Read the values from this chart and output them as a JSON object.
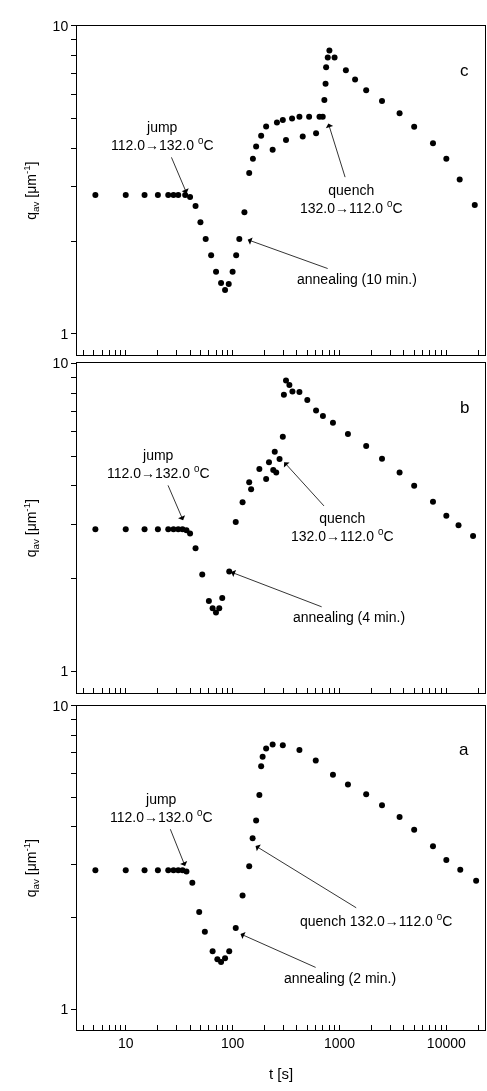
{
  "chart_data": [
    {
      "type": "scatter",
      "title": "c",
      "ylabel": "q$_{av}$ [μm$^{-1}$]",
      "log": "xy",
      "marker": "circle",
      "tick_labels": "y",
      "color": "#000000",
      "x": [
        5.2,
        10,
        15,
        20,
        25,
        28,
        31,
        36,
        40,
        45,
        50,
        56,
        63,
        70,
        78,
        85,
        92,
        100,
        108,
        115.5,
        129,
        143,
        155,
        166,
        185,
        206,
        237,
        260,
        295,
        316,
        360,
        422,
        453,
        520,
        604,
        650,
        697,
        722,
        741,
        750,
        777,
        805,
        900,
        1148,
        1400,
        1778,
        2500,
        3652,
        5000,
        7499,
        10000,
        13335,
        18450
      ],
      "values": [
        2.82,
        2.82,
        2.82,
        2.82,
        2.82,
        2.82,
        2.82,
        2.82,
        2.78,
        2.6,
        2.3,
        2.03,
        1.8,
        1.59,
        1.46,
        1.386,
        1.45,
        1.59,
        1.8,
        2.03,
        2.48,
        3.33,
        3.7,
        4.06,
        4.4,
        4.71,
        3.96,
        4.85,
        4.95,
        4.26,
        5.0,
        5.07,
        4.37,
        5.07,
        4.48,
        5.07,
        5.07,
        5.74,
        6.49,
        7.34,
        7.9,
        8.31,
        7.9,
        7.17,
        6.7,
        6.18,
        5.7,
        5.2,
        4.7,
        4.16,
        3.7,
        3.17,
        2.62
      ],
      "xlim": [
        3.5,
        23000
      ],
      "xticks": [
        {
          "value": 4,
          "label": null
        },
        {
          "value": 5,
          "label": null
        },
        {
          "value": 6,
          "label": null
        },
        {
          "value": 7,
          "label": null
        },
        {
          "value": 8,
          "label": null
        },
        {
          "value": 9,
          "label": null
        },
        10,
        {
          "value": 20,
          "label": null
        },
        {
          "value": 30,
          "label": null
        },
        {
          "value": 40,
          "label": null
        },
        {
          "value": 50,
          "label": null
        },
        {
          "value": 60,
          "label": null
        },
        {
          "value": 70,
          "label": null
        },
        {
          "value": 80,
          "label": null
        },
        {
          "value": 90,
          "label": null
        },
        100,
        {
          "value": 200,
          "label": null
        },
        {
          "value": 300,
          "label": null
        },
        {
          "value": 400,
          "label": null
        },
        {
          "value": 500,
          "label": null
        },
        {
          "value": 600,
          "label": null
        },
        {
          "value": 700,
          "label": null
        },
        {
          "value": 800,
          "label": null
        },
        {
          "value": 900,
          "label": null
        },
        1000,
        {
          "value": 2000,
          "label": null
        },
        {
          "value": 3000,
          "label": null
        },
        {
          "value": 4000,
          "label": null
        },
        {
          "value": 5000,
          "label": null
        },
        {
          "value": 6000,
          "label": null
        },
        {
          "value": 7000,
          "label": null
        },
        {
          "value": 8000,
          "label": null
        },
        {
          "value": 9000,
          "label": null
        },
        10000,
        {
          "value": 20000,
          "label": null
        }
      ],
      "ylim": [
        0.85,
        10
      ],
      "yticks": [
        1,
        {
          "value": 2,
          "label": null
        },
        {
          "value": 3,
          "label": null
        },
        {
          "value": 4,
          "label": null
        },
        {
          "value": 5,
          "label": null
        },
        {
          "value": 6,
          "label": null
        },
        {
          "value": 7,
          "label": null
        },
        {
          "value": 8,
          "label": null
        },
        {
          "value": 9,
          "label": null
        },
        10
      ],
      "annotations": [
        {
          "text": "jump\n112.0→132.0 $^{0}$C",
          "x": 37.8,
          "y": 2.82
        },
        {
          "text": "annealing (10 min.)",
          "x": 133,
          "y": 2.03
        },
        {
          "text": "quench\n132.0→112.0 $^{0}$C",
          "x": 777,
          "y": 4.89
        }
      ]
    },
    {
      "type": "scatter",
      "title": "b",
      "ylabel": "q$_{av}$ [μm$^{-1}$]",
      "log": "xy",
      "marker": "circle",
      "tick_labels": "y",
      "color": "#000000",
      "x": [
        5.2,
        10,
        15,
        20,
        25,
        28,
        31,
        34,
        37,
        40,
        45,
        52,
        60,
        65,
        69.9,
        75,
        80,
        93,
        107,
        124,
        143,
        149,
        178,
        206,
        219,
        240,
        248,
        256,
        275,
        295,
        302,
        316,
        340,
        363,
        422,
        500,
        604,
        700,
        869,
        1200,
        1778,
        2500,
        3652,
        5000,
        7499,
        10000,
        13000,
        17783
      ],
      "values": [
        2.89,
        2.89,
        2.89,
        2.89,
        2.89,
        2.89,
        2.89,
        2.89,
        2.87,
        2.8,
        2.51,
        2.06,
        1.69,
        1.6,
        1.55,
        1.6,
        1.73,
        2.11,
        3.05,
        3.54,
        4.11,
        3.9,
        4.54,
        4.21,
        4.77,
        4.5,
        5.16,
        4.42,
        4.89,
        5.78,
        7.91,
        8.8,
        8.5,
        8.1,
        8.07,
        7.6,
        7.03,
        6.75,
        6.41,
        5.9,
        5.39,
        4.9,
        4.42,
        4.0,
        3.55,
        3.2,
        2.98,
        2.75
      ],
      "xlim": [
        3.5,
        23000
      ],
      "xticks": [
        {
          "value": 4,
          "label": null
        },
        {
          "value": 5,
          "label": null
        },
        {
          "value": 6,
          "label": null
        },
        {
          "value": 7,
          "label": null
        },
        {
          "value": 8,
          "label": null
        },
        {
          "value": 9,
          "label": null
        },
        10,
        {
          "value": 20,
          "label": null
        },
        {
          "value": 30,
          "label": null
        },
        {
          "value": 40,
          "label": null
        },
        {
          "value": 50,
          "label": null
        },
        {
          "value": 60,
          "label": null
        },
        {
          "value": 70,
          "label": null
        },
        {
          "value": 80,
          "label": null
        },
        {
          "value": 90,
          "label": null
        },
        100,
        {
          "value": 200,
          "label": null
        },
        {
          "value": 300,
          "label": null
        },
        {
          "value": 400,
          "label": null
        },
        {
          "value": 500,
          "label": null
        },
        {
          "value": 600,
          "label": null
        },
        {
          "value": 700,
          "label": null
        },
        {
          "value": 800,
          "label": null
        },
        {
          "value": 900,
          "label": null
        },
        1000,
        {
          "value": 2000,
          "label": null
        },
        {
          "value": 3000,
          "label": null
        },
        {
          "value": 4000,
          "label": null
        },
        {
          "value": 5000,
          "label": null
        },
        {
          "value": 6000,
          "label": null
        },
        {
          "value": 7000,
          "label": null
        },
        {
          "value": 8000,
          "label": null
        },
        {
          "value": 9000,
          "label": null
        },
        10000,
        {
          "value": 20000,
          "label": null
        }
      ],
      "ylim": [
        0.85,
        10
      ],
      "yticks": [
        1,
        {
          "value": 2,
          "label": null
        },
        {
          "value": 3,
          "label": null
        },
        {
          "value": 4,
          "label": null
        },
        {
          "value": 5,
          "label": null
        },
        {
          "value": 6,
          "label": null
        },
        {
          "value": 7,
          "label": null
        },
        {
          "value": 8,
          "label": null
        },
        {
          "value": 9,
          "label": null
        },
        10
      ],
      "annotations": [
        {
          "text": "jump\n112.0→132.0 $^{0}$C",
          "x": 35,
          "y": 3.05
        },
        {
          "text": "annealing (4 min.)",
          "x": 93,
          "y": 2.11
        },
        {
          "text": "quench\n132.0→112.0 $^{0}$C",
          "x": 295,
          "y": 4.83
        }
      ]
    },
    {
      "type": "scatter",
      "title": "a",
      "ylabel": "q$_{av}$ [μm$^{-1}$]",
      "xlabel": "t [s]",
      "log": "xy",
      "marker": "circle",
      "color": "#000000",
      "x": [
        5.2,
        10,
        15,
        20,
        25,
        28,
        31,
        34,
        37,
        42,
        48.7,
        55,
        65,
        72,
        78,
        85,
        93,
        107,
        124,
        143,
        154,
        166,
        178,
        185,
        191,
        206,
        237,
        295,
        422,
        600,
        869,
        1200,
        1778,
        2500,
        3652,
        5000,
        7499,
        10000,
        13500,
        19000
      ],
      "values": [
        2.87,
        2.87,
        2.87,
        2.87,
        2.87,
        2.87,
        2.87,
        2.87,
        2.84,
        2.61,
        2.09,
        1.8,
        1.55,
        1.46,
        1.43,
        1.47,
        1.55,
        1.85,
        2.37,
        2.96,
        3.66,
        4.19,
        5.08,
        6.32,
        6.8,
        7.24,
        7.46,
        7.42,
        7.15,
        6.6,
        5.93,
        5.5,
        5.11,
        4.7,
        4.3,
        3.9,
        3.44,
        3.1,
        2.88,
        2.65
      ],
      "xlim": [
        3.5,
        23000
      ],
      "xticks": [
        {
          "value": 4,
          "label": null
        },
        {
          "value": 5,
          "label": null
        },
        {
          "value": 6,
          "label": null
        },
        {
          "value": 7,
          "label": null
        },
        {
          "value": 8,
          "label": null
        },
        {
          "value": 9,
          "label": null
        },
        10,
        {
          "value": 20,
          "label": null
        },
        {
          "value": 30,
          "label": null
        },
        {
          "value": 40,
          "label": null
        },
        {
          "value": 50,
          "label": null
        },
        {
          "value": 60,
          "label": null
        },
        {
          "value": 70,
          "label": null
        },
        {
          "value": 80,
          "label": null
        },
        {
          "value": 90,
          "label": null
        },
        100,
        {
          "value": 200,
          "label": null
        },
        {
          "value": 300,
          "label": null
        },
        {
          "value": 400,
          "label": null
        },
        {
          "value": 500,
          "label": null
        },
        {
          "value": 600,
          "label": null
        },
        {
          "value": 700,
          "label": null
        },
        {
          "value": 800,
          "label": null
        },
        {
          "value": 900,
          "label": null
        },
        1000,
        {
          "value": 2000,
          "label": null
        },
        {
          "value": 3000,
          "label": null
        },
        {
          "value": 4000,
          "label": null
        },
        {
          "value": 5000,
          "label": null
        },
        {
          "value": 6000,
          "label": null
        },
        {
          "value": 7000,
          "label": null
        },
        {
          "value": 8000,
          "label": null
        },
        {
          "value": 9000,
          "label": null
        },
        10000,
        {
          "value": 20000,
          "label": null
        }
      ],
      "ylim": [
        0.85,
        10
      ],
      "yticks": [
        1,
        {
          "value": 2,
          "label": null
        },
        {
          "value": 3,
          "label": null
        },
        {
          "value": 4,
          "label": null
        },
        {
          "value": 5,
          "label": null
        },
        {
          "value": 6,
          "label": null
        },
        {
          "value": 7,
          "label": null
        },
        {
          "value": 8,
          "label": null
        },
        {
          "value": 9,
          "label": null
        },
        10
      ],
      "annotations": [
        {
          "text": "jump\n112.0→132.0 $^{0}$C",
          "x": 36.5,
          "y": 2.92
        },
        {
          "text": "annealing (2 min.)",
          "x": 114,
          "y": 1.78
        },
        {
          "text": "quench 132.0→112.0 $^{0}$C",
          "x": 158,
          "y": 3.48
        }
      ]
    }
  ]
}
